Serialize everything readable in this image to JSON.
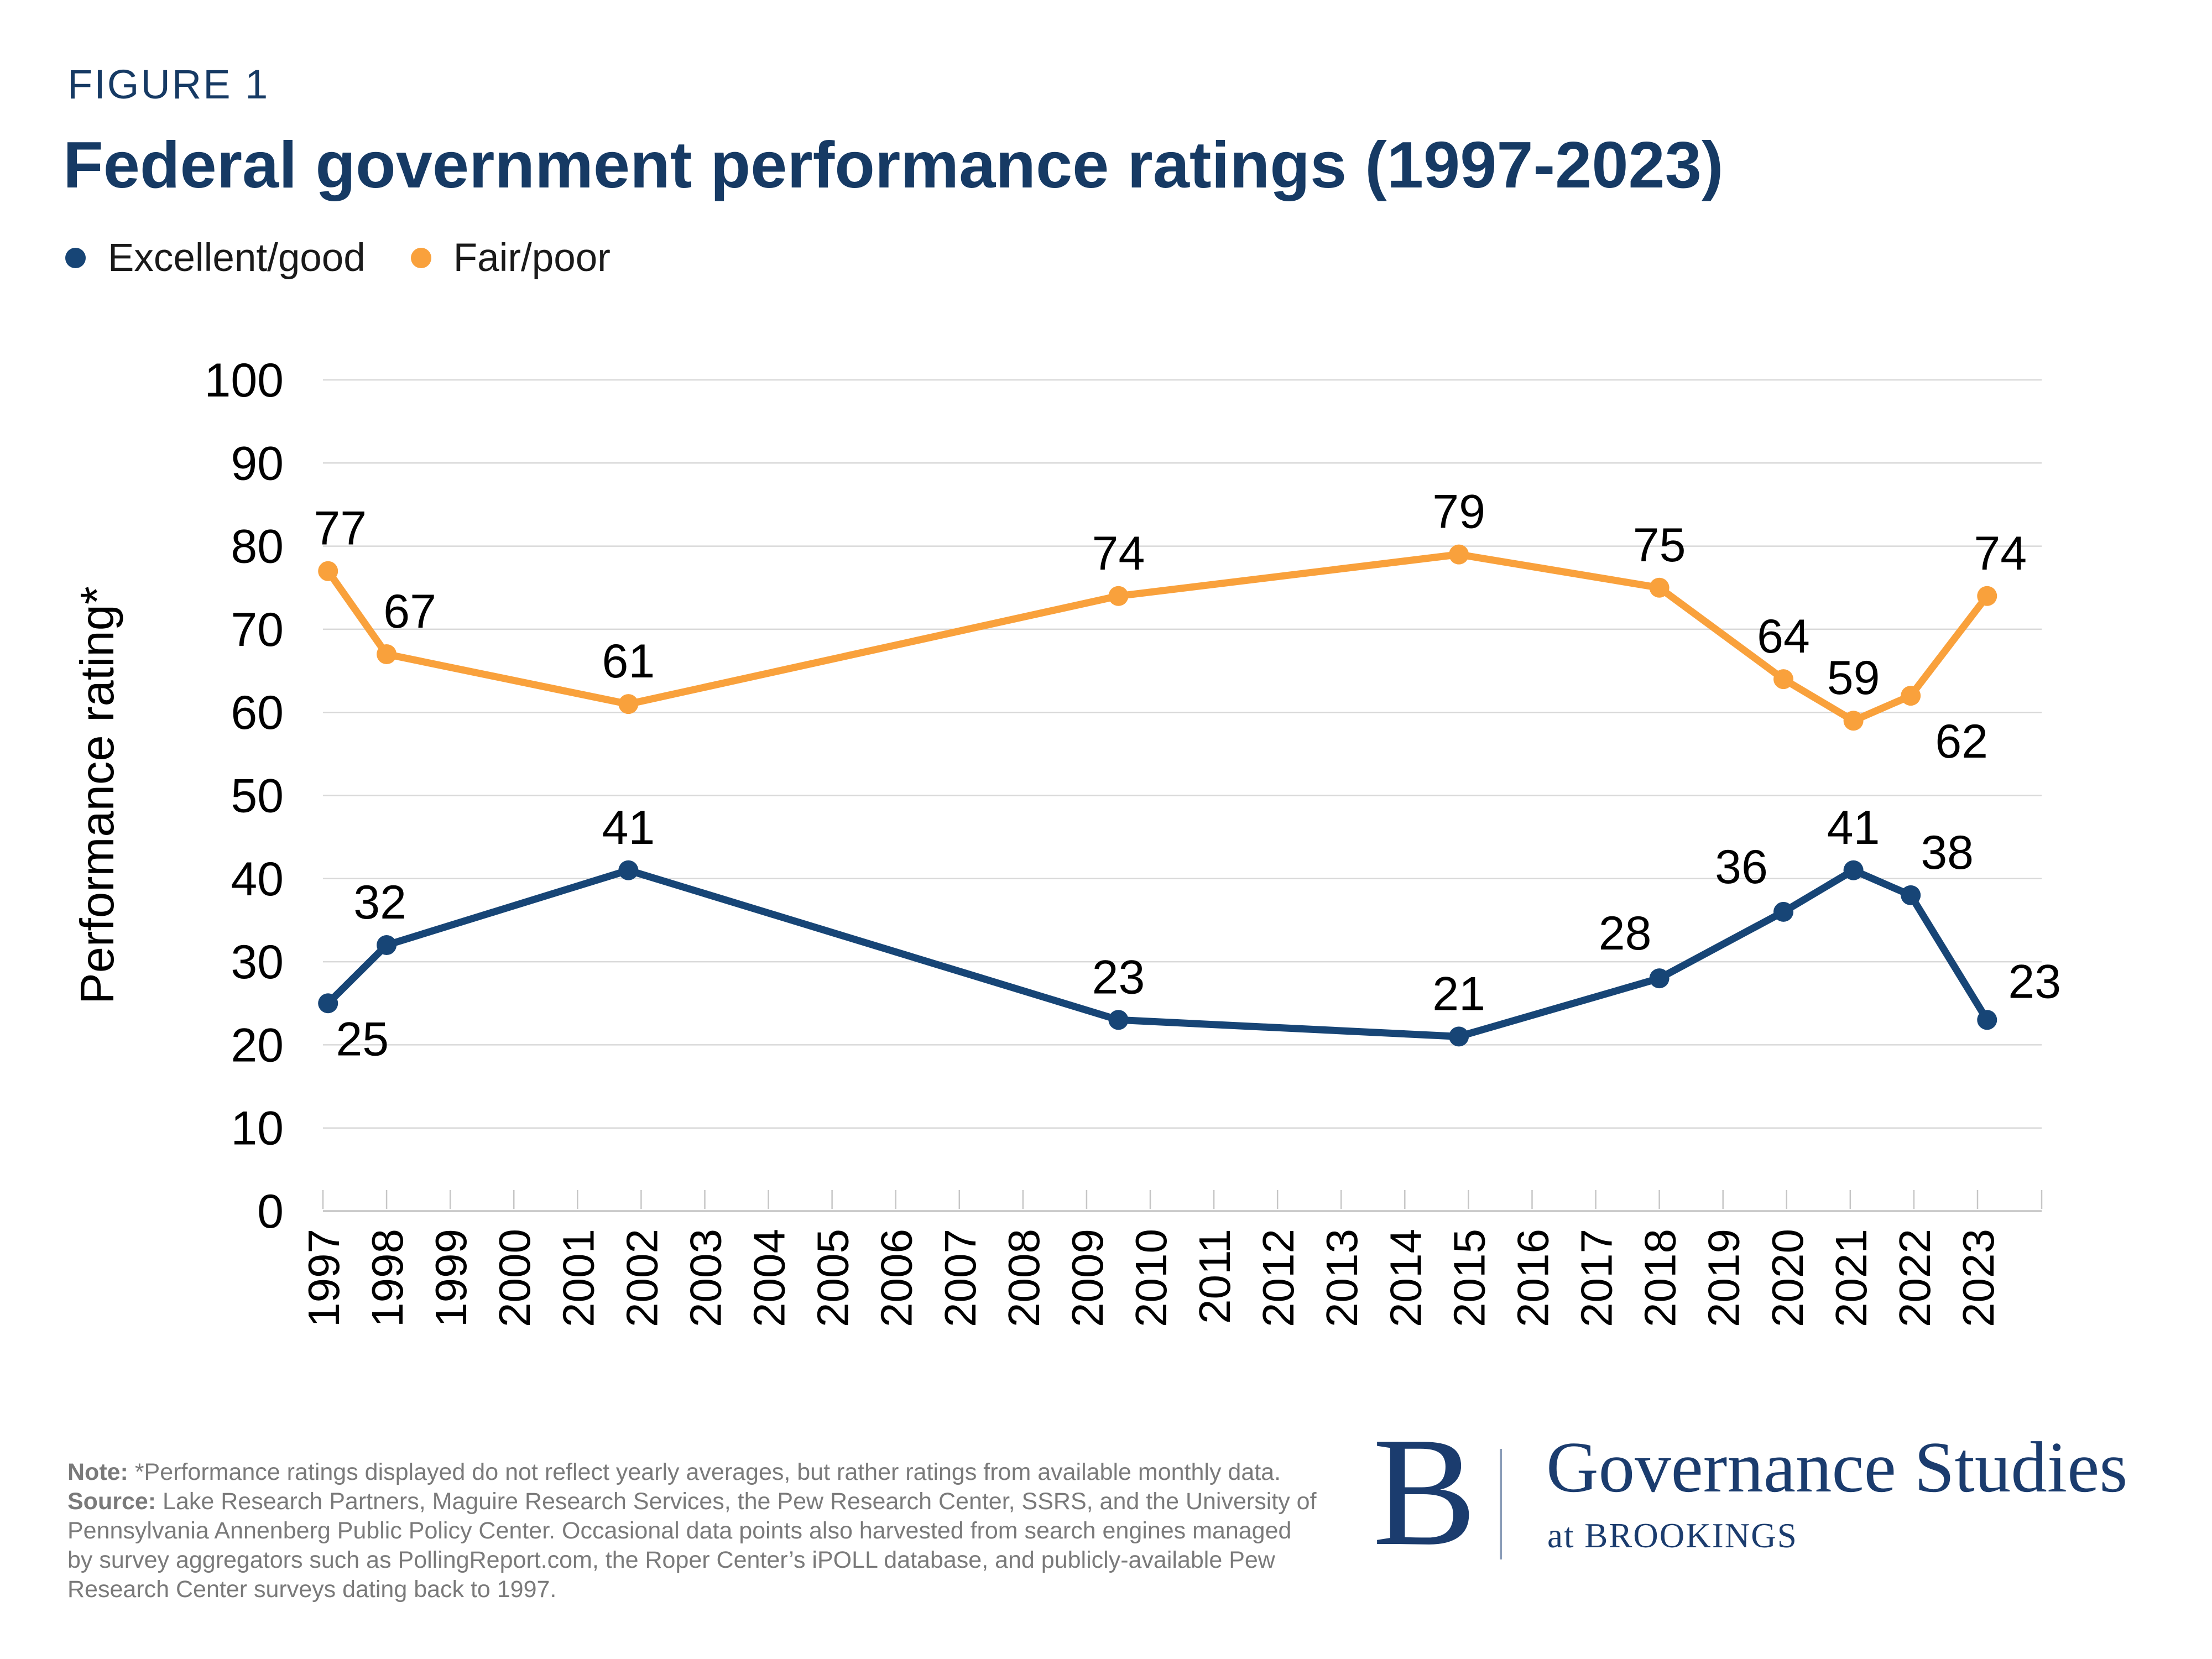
{
  "page": {
    "figure_label": "FIGURE 1",
    "title": "Federal government performance ratings (1997-2023)"
  },
  "legend": [
    {
      "label": "Excellent/good",
      "color": "#174576"
    },
    {
      "label": "Fair/poor",
      "color": "#F9A13C"
    }
  ],
  "chart_data": {
    "type": "line",
    "title": "Federal government performance ratings (1997-2023)",
    "xlabel": "",
    "ylabel": "Performance rating*",
    "ylim": [
      0,
      100
    ],
    "ytick_step": 10,
    "x_axis_years": [
      1997,
      1998,
      1999,
      2000,
      2001,
      2002,
      2003,
      2004,
      2005,
      2006,
      2007,
      2008,
      2009,
      2010,
      2011,
      2012,
      2013,
      2014,
      2015,
      2016,
      2017,
      2018,
      2019,
      2020,
      2021,
      2022,
      2023
    ],
    "grid": true,
    "legend_position": "top-left",
    "colors": {
      "gridline": "#D9D9D9",
      "axis": "#C6C6C6",
      "tick_label": "#000000",
      "data_label": "#000000"
    },
    "series": [
      {
        "name": "Excellent/good",
        "color": "#174576",
        "points": [
          {
            "year": 1997.08,
            "value": 25,
            "label": "25",
            "label_dx": 62,
            "label_dy": 94
          },
          {
            "year": 1998.0,
            "value": 32,
            "label": "32",
            "label_dx": -12,
            "label_dy": -48
          },
          {
            "year": 2001.8,
            "value": 41,
            "label": "41",
            "label_dx": 0,
            "label_dy": -48
          },
          {
            "year": 2009.5,
            "value": 23,
            "label": "23",
            "label_dx": 0,
            "label_dy": -48
          },
          {
            "year": 2014.85,
            "value": 21,
            "label": "21",
            "label_dx": 0,
            "label_dy": -48
          },
          {
            "year": 2018.0,
            "value": 28,
            "label": "28",
            "label_dx": -62,
            "label_dy": -52
          },
          {
            "year": 2019.95,
            "value": 36,
            "label": "36",
            "label_dx": -76,
            "label_dy": -52
          },
          {
            "year": 2021.05,
            "value": 41,
            "label": "41",
            "label_dx": 0,
            "label_dy": -48
          },
          {
            "year": 2021.95,
            "value": 38,
            "label": "38",
            "label_dx": 66,
            "label_dy": -48
          },
          {
            "year": 2023.15,
            "value": 23,
            "label": "23",
            "label_dx": 86,
            "label_dy": -40
          }
        ]
      },
      {
        "name": "Fair/poor",
        "color": "#F9A13C",
        "points": [
          {
            "year": 1997.08,
            "value": 77,
            "label": "77",
            "label_dx": 22,
            "label_dy": -48
          },
          {
            "year": 1998.0,
            "value": 67,
            "label": "67",
            "label_dx": 42,
            "label_dy": -48
          },
          {
            "year": 2001.8,
            "value": 61,
            "label": "61",
            "label_dx": 0,
            "label_dy": -48
          },
          {
            "year": 2009.5,
            "value": 74,
            "label": "74",
            "label_dx": 0,
            "label_dy": -48
          },
          {
            "year": 2014.85,
            "value": 79,
            "label": "79",
            "label_dx": 0,
            "label_dy": -48
          },
          {
            "year": 2018.0,
            "value": 75,
            "label": "75",
            "label_dx": 0,
            "label_dy": -48
          },
          {
            "year": 2019.95,
            "value": 64,
            "label": "64",
            "label_dx": 0,
            "label_dy": -48
          },
          {
            "year": 2021.05,
            "value": 59,
            "label": "59",
            "label_dx": 0,
            "label_dy": -48
          },
          {
            "year": 2021.95,
            "value": 62,
            "label": "62",
            "label_dx": 92,
            "label_dy": 112
          },
          {
            "year": 2023.15,
            "value": 74,
            "label": "74",
            "label_dx": 24,
            "label_dy": -48
          }
        ]
      }
    ]
  },
  "note": {
    "lines": [
      {
        "bold": "Note:",
        "rest": " *Performance ratings displayed do not reflect yearly averages, but rather ratings from available monthly data."
      },
      {
        "bold": "Source:",
        "rest": " Lake Research Partners, Maguire Research Services, the Pew Research Center, SSRS, and the University of"
      },
      {
        "bold": "",
        "rest": "Pennsylvania Annenberg Public Policy Center. Occasional data points also harvested from search engines managed"
      },
      {
        "bold": "",
        "rest": "by survey aggregators such as PollingReport.com, the Roper Center’s iPOLL database, and publicly-available Pew"
      },
      {
        "bold": "",
        "rest": "Research Center surveys dating back to 1997."
      }
    ]
  },
  "logo": {
    "monogram": "B",
    "org": "Governance Studies",
    "sub": "at BROOKINGS"
  }
}
